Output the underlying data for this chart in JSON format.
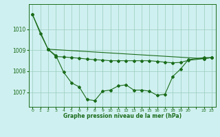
{
  "line1_x": [
    0,
    1,
    2,
    3,
    4,
    5,
    6,
    7,
    8,
    9,
    10,
    11,
    12,
    13,
    14,
    15,
    16,
    17,
    18,
    19,
    20,
    22,
    23
  ],
  "line1_y": [
    1010.7,
    1009.8,
    1009.05,
    1008.75,
    1007.95,
    1007.45,
    1007.25,
    1006.65,
    1006.6,
    1007.05,
    1007.1,
    1007.3,
    1007.35,
    1007.1,
    1007.1,
    1007.05,
    1006.85,
    1006.9,
    1007.75,
    1008.1,
    1008.55,
    1008.65,
    1008.65
  ],
  "line2_x": [
    2,
    3,
    4,
    5,
    6,
    7,
    8,
    9,
    10,
    11,
    12,
    13,
    14,
    15,
    16,
    17,
    18,
    19,
    20,
    22,
    23
  ],
  "line2_y": [
    1009.05,
    1008.7,
    1008.68,
    1008.65,
    1008.62,
    1008.58,
    1008.55,
    1008.53,
    1008.5,
    1008.5,
    1008.5,
    1008.5,
    1008.5,
    1008.5,
    1008.47,
    1008.43,
    1008.4,
    1008.42,
    1008.52,
    1008.6,
    1008.65
  ],
  "line3_x": [
    0,
    2,
    22,
    23
  ],
  "line3_y": [
    1010.7,
    1009.05,
    1008.6,
    1008.65
  ],
  "bg_color": "#cff0f0",
  "line_color": "#1a6b1a",
  "grid_color": "#99ccbb",
  "xlabel": "Graphe pression niveau de la mer (hPa)",
  "yticks": [
    1007,
    1008,
    1009,
    1010
  ],
  "xtick_labels": [
    "0",
    "1",
    "2",
    "3",
    "4",
    "5",
    "6",
    "7",
    "8",
    "9",
    "10",
    "11",
    "12",
    "13",
    "14",
    "15",
    "16",
    "17",
    "18",
    "19",
    "20",
    "",
    "22",
    "23"
  ],
  "ylim": [
    1006.3,
    1011.2
  ],
  "xlim": [
    -0.5,
    23.5
  ]
}
